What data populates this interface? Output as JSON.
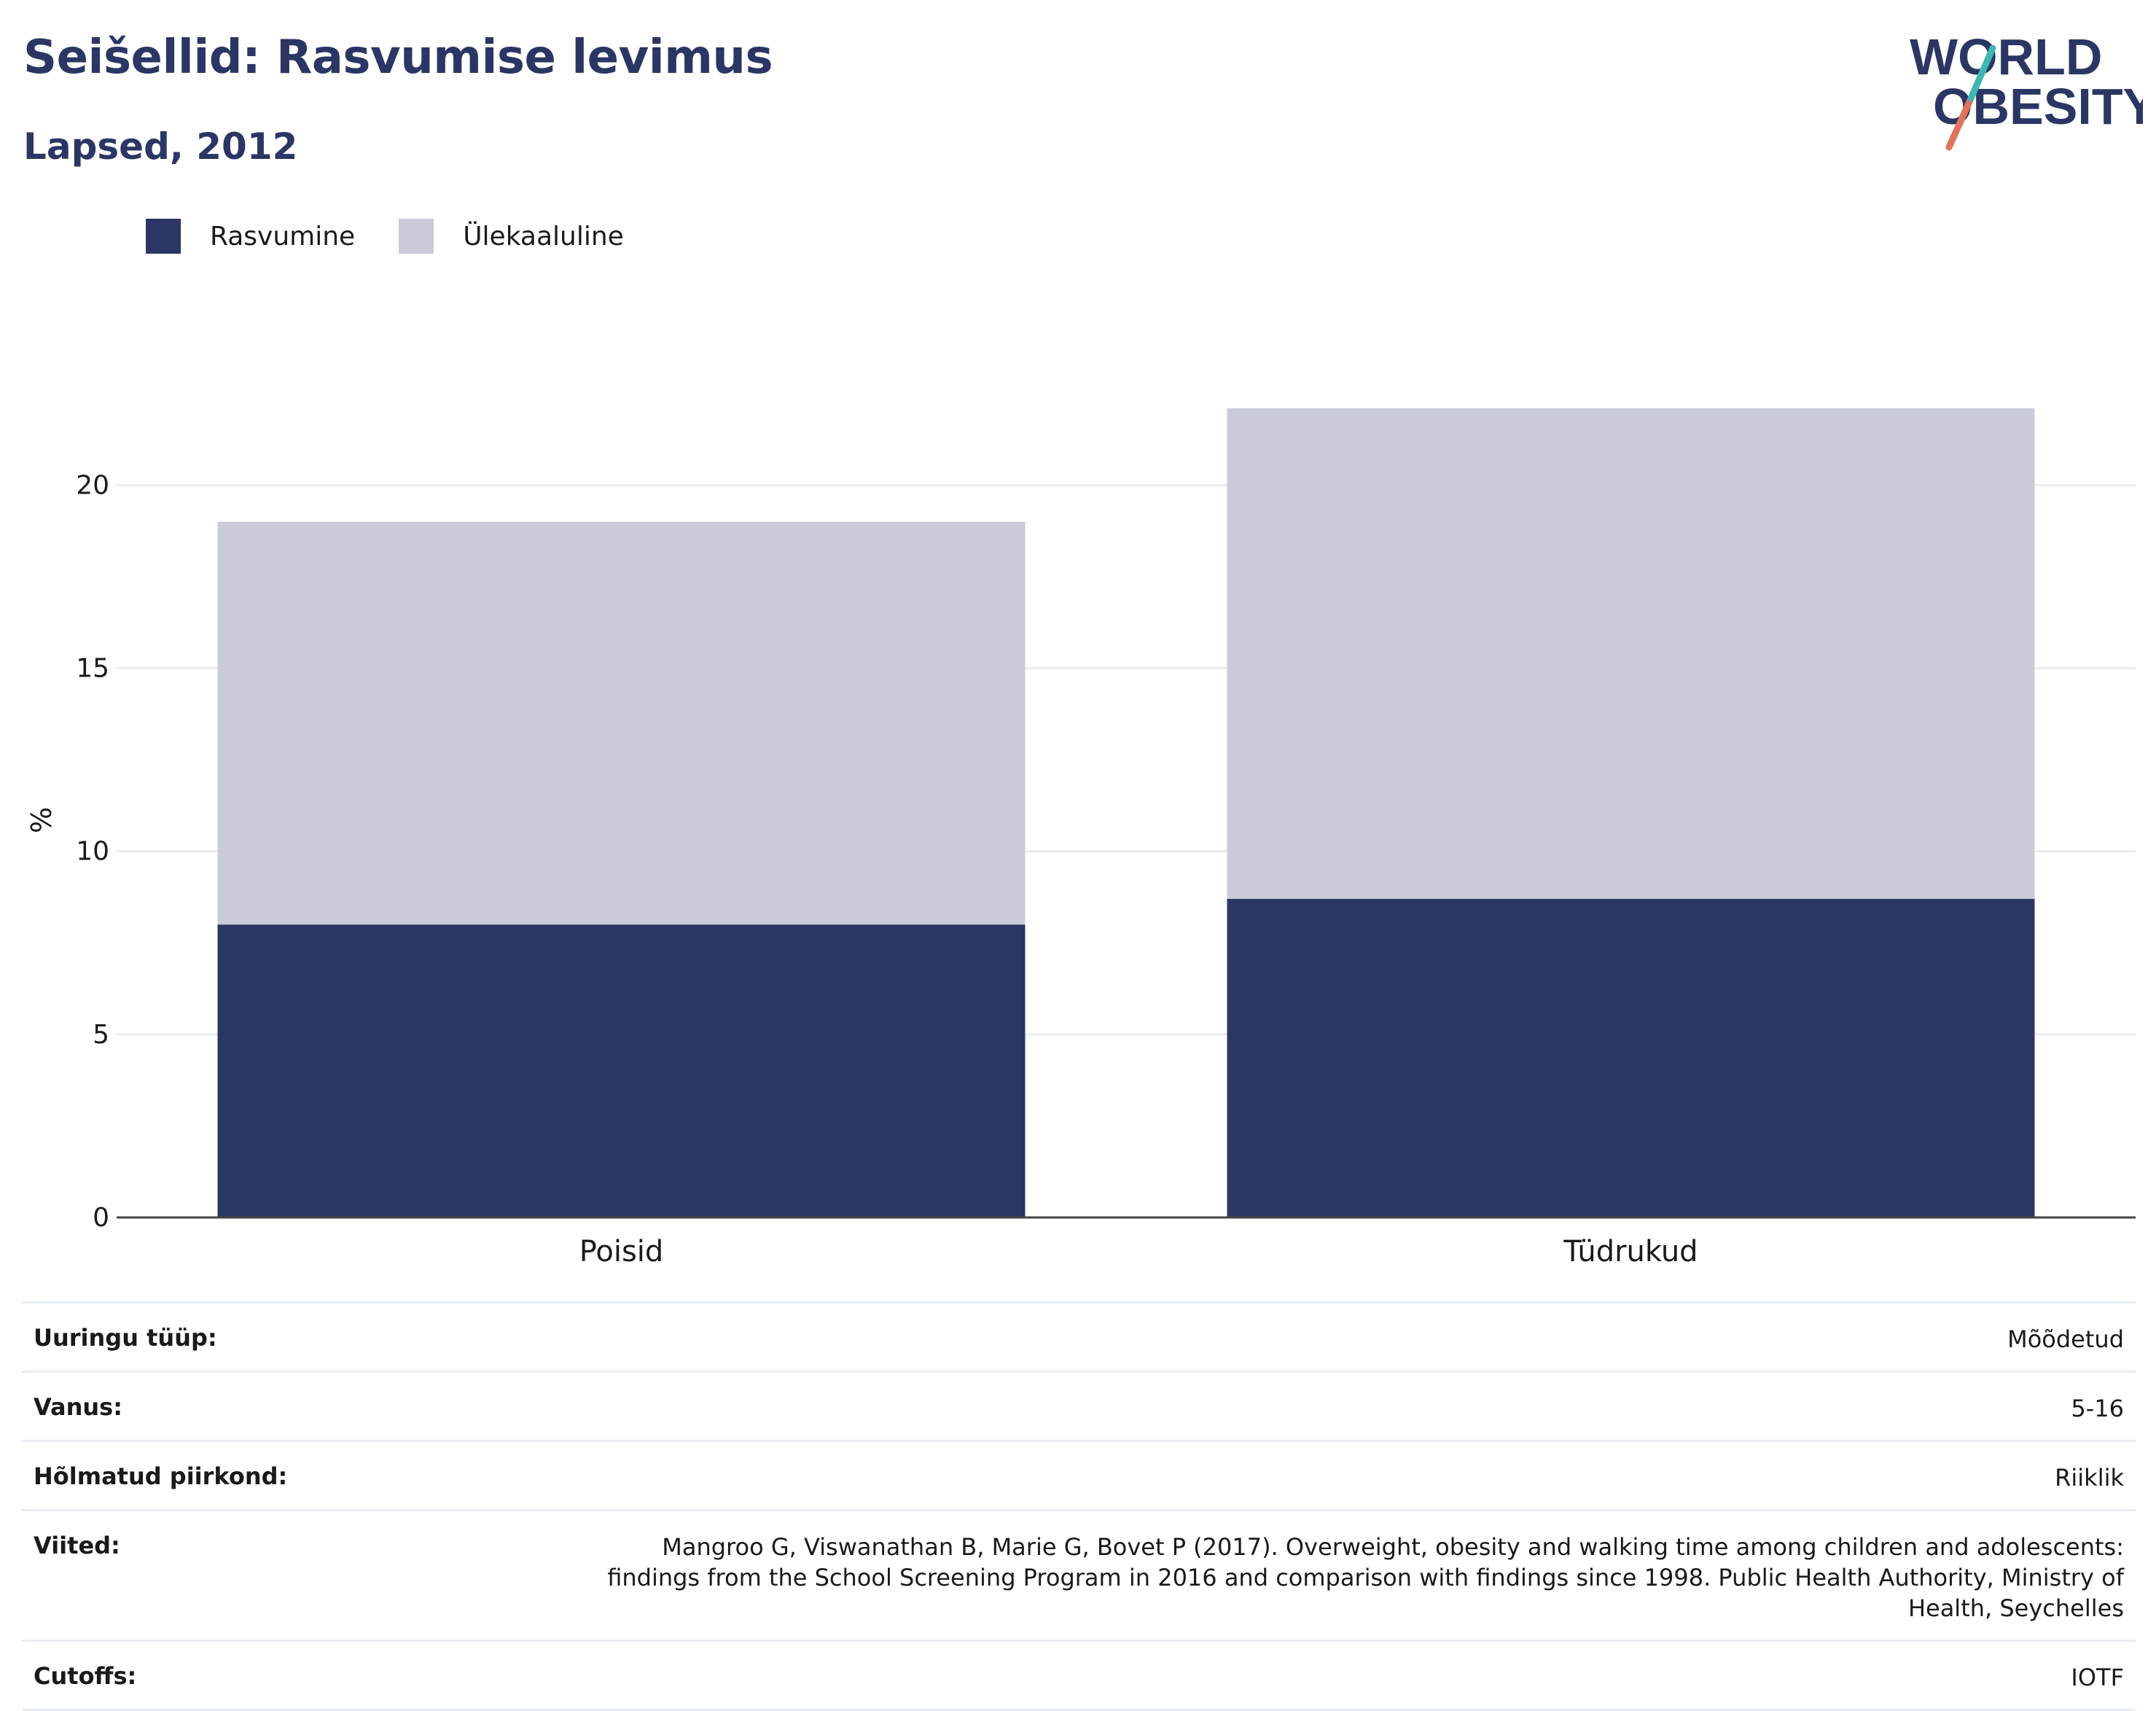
{
  "header": {
    "title": "Seišellid: Rasvumise levimus",
    "subtitle": "Lapsed, 2012"
  },
  "logo": {
    "line1": "WORLD",
    "line2": "OBESITY"
  },
  "legend": [
    {
      "label": "Rasvumine",
      "color": "#2b3664"
    },
    {
      "label": "Ülekaaluline",
      "color": "#cacdd9"
    }
  ],
  "chart_data": {
    "type": "bar",
    "stacked": true,
    "categories": [
      "Poisid",
      "Tüdrukud"
    ],
    "series": [
      {
        "name": "Rasvumine",
        "values": [
          8.0,
          8.7
        ],
        "color": "#2b3664"
      },
      {
        "name": "Ülekaaluline",
        "values": [
          11.0,
          13.4
        ],
        "color": "#cacdd9"
      }
    ],
    "ylabel": "%",
    "ylim": [
      0,
      22.1
    ],
    "yticks": [
      0,
      5,
      10,
      15,
      20
    ],
    "grid": true,
    "legend_position": "top-left"
  },
  "meta": [
    {
      "key": "Uuringu tüüp:",
      "value": "Mõõdetud"
    },
    {
      "key": "Vanus:",
      "value": "5-16"
    },
    {
      "key": "Hõlmatud piirkond:",
      "value": "Riiklik"
    },
    {
      "key": "Viited:",
      "value": "Mangroo G, Viswanathan B, Marie G, Bovet P (2017). Overweight, obesity and walking time among children and adolescents: findings from the School Screening Program in 2016 and comparison with findings since 1998. Public Health Authority, Ministry of Health, Seychelles"
    },
    {
      "key": "Cutoffs:",
      "value": "IOTF"
    }
  ]
}
